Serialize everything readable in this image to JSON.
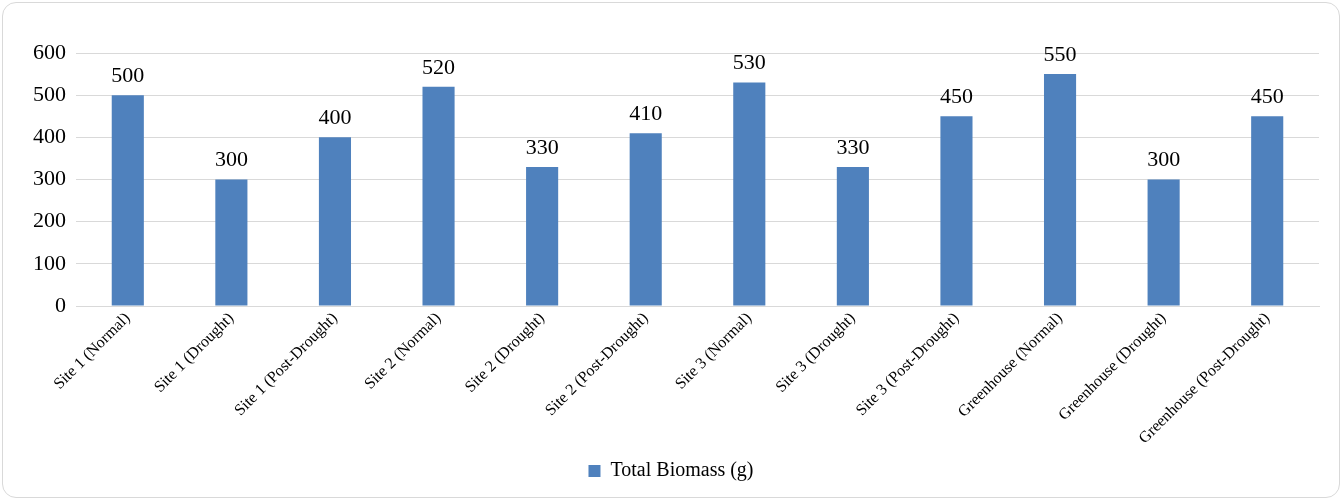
{
  "chart_data": {
    "type": "bar",
    "categories": [
      "Site 1 (Normal)",
      "Site 1 (Drought)",
      "Site 1 (Post-Drought)",
      "Site 2 (Normal)",
      "Site 2 (Drought)",
      "Site 2 (Post-Drought)",
      "Site 3 (Normal)",
      "Site 3 (Drought)",
      "Site 3 (Post-Drought)",
      "Greenhouse (Normal)",
      "Greenhouse (Drought)",
      "Greenhouse (Post-Drought)"
    ],
    "series": [
      {
        "name": "Total Biomass (g)",
        "color": "#4f81bd",
        "values": [
          500,
          300,
          400,
          520,
          330,
          410,
          530,
          330,
          450,
          550,
          300,
          450
        ]
      }
    ],
    "ylim": [
      0,
      600
    ],
    "yticks": [
      0,
      100,
      200,
      300,
      400,
      500,
      600
    ],
    "grid": "y",
    "legend": "bottom",
    "data_labels": true
  }
}
